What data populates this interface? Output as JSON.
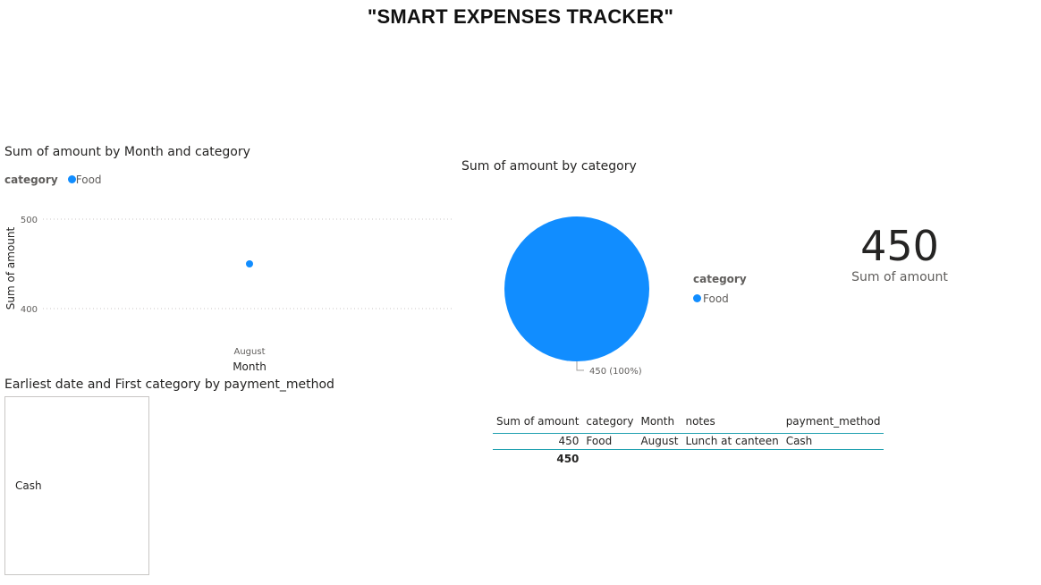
{
  "report": {
    "title": "\"SMART EXPENSES TRACKER\""
  },
  "colors": {
    "series": "#118dff",
    "gridline": "#c8c6c4",
    "table_rule": "#1fa0b0"
  },
  "line_visual": {
    "title": "Sum of amount by Month and category",
    "legend_title": "category",
    "legend_items": [
      "Food"
    ],
    "chart_data": {
      "type": "scatter",
      "title": "Sum of amount by Month and category",
      "xlabel": "Month",
      "ylabel": "Sum of amount",
      "categories": [
        "August"
      ],
      "series": [
        {
          "name": "Food",
          "values": [
            450
          ]
        }
      ],
      "y_ticks": [
        "500",
        "400"
      ],
      "ylim": [
        380,
        510
      ],
      "grid": true,
      "legend": "top-left"
    }
  },
  "pie_visual": {
    "title": "Sum of amount by category",
    "legend_title": "category",
    "legend_items": [
      "Food"
    ],
    "chart_data": {
      "type": "pie",
      "title": "Sum of amount by category",
      "slices": [
        {
          "label": "Food",
          "value": 450,
          "percent": 100
        }
      ],
      "data_label": "450 (100%)",
      "legend": "right"
    }
  },
  "card": {
    "value": "450",
    "label": "Sum of amount"
  },
  "table": {
    "headers": [
      "Sum of amount",
      "category",
      "Month",
      "notes",
      "payment_method"
    ],
    "rows": [
      [
        "450",
        "Food",
        "August",
        "Lunch at canteen",
        "Cash"
      ]
    ],
    "total": "450"
  },
  "slicer": {
    "title": "Earliest date and First category by payment_method",
    "items": [
      "Cash"
    ]
  }
}
